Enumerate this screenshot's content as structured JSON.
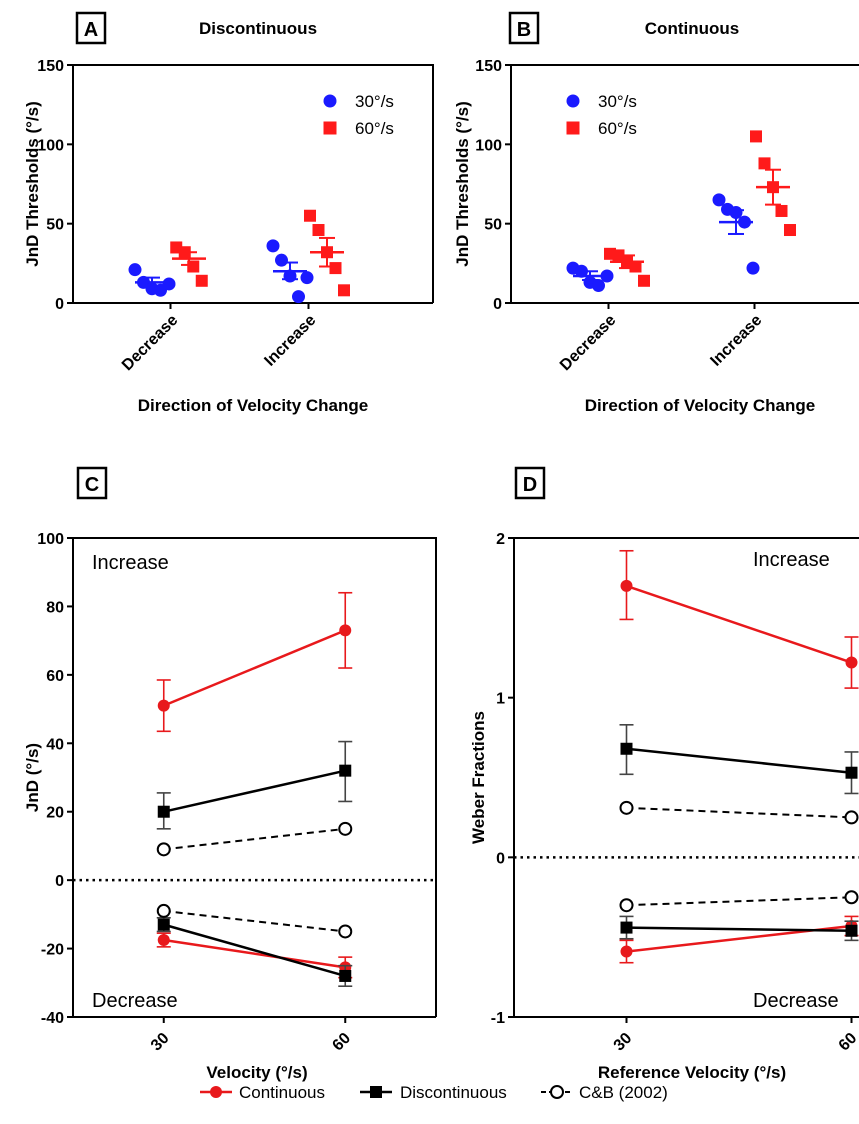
{
  "colors": {
    "blue": "#1a1aff",
    "red": "#ff1a1a",
    "red_line": "#e8191c",
    "black": "#000000"
  },
  "legend": {
    "continuous": "Continuous",
    "discontinuous": "Discontinuous",
    "cb": "C&B (2002)"
  },
  "chart_data": [
    {
      "panel": "A",
      "type": "scatter",
      "title": "Discontinuous",
      "xlabel": "Direction of Velocity Change",
      "ylabel": "JnD Thresholds (°/s)",
      "ylim": [
        0,
        150
      ],
      "yticks": [
        0,
        50,
        100,
        150
      ],
      "categories": [
        "Decrease",
        "Increase"
      ],
      "legend_position": "top-right",
      "series": [
        {
          "name": "30°/s",
          "marker": "circle",
          "color": "#1a1aff",
          "groups": [
            {
              "category": "Decrease",
              "points": [
                21,
                13,
                9,
                8,
                12
              ],
              "mean": 13,
              "sem_low": 10.5,
              "sem_high": 16
            },
            {
              "category": "Increase",
              "points": [
                36,
                27,
                17,
                4,
                16
              ],
              "mean": 20,
              "sem_low": 15,
              "sem_high": 25.5
            }
          ]
        },
        {
          "name": "60°/s",
          "marker": "square",
          "color": "#ff1a1a",
          "groups": [
            {
              "category": "Decrease",
              "points": [
                35,
                32,
                23,
                14
              ],
              "mean": 28,
              "sem_low": 24,
              "sem_high": 32
            },
            {
              "category": "Increase",
              "points": [
                55,
                46,
                32,
                22,
                8
              ],
              "mean": 32,
              "sem_low": 23,
              "sem_high": 41
            }
          ]
        }
      ]
    },
    {
      "panel": "B",
      "type": "scatter",
      "title": "Continuous",
      "xlabel": "Direction of Velocity Change",
      "ylabel": "JnD Thresholds (°/s)",
      "ylim": [
        0,
        150
      ],
      "yticks": [
        0,
        50,
        100,
        150
      ],
      "categories": [
        "Decrease",
        "Increase"
      ],
      "legend_position": "top-left",
      "series": [
        {
          "name": "30°/s",
          "marker": "circle",
          "color": "#1a1aff",
          "groups": [
            {
              "category": "Decrease",
              "points": [
                22,
                20,
                13,
                11,
                17
              ],
              "mean": 17,
              "sem_low": 14.5,
              "sem_high": 20
            },
            {
              "category": "Increase",
              "points": [
                65,
                59,
                57,
                51,
                22
              ],
              "mean": 51,
              "sem_low": 43.5,
              "sem_high": 58.5
            }
          ]
        },
        {
          "name": "60°/s",
          "marker": "square",
          "color": "#ff1a1a",
          "groups": [
            {
              "category": "Decrease",
              "points": [
                31,
                30,
                26,
                23,
                14
              ],
              "mean": 26,
              "sem_low": 22,
              "sem_high": 30
            },
            {
              "category": "Increase",
              "points": [
                105,
                88,
                73,
                58,
                46
              ],
              "mean": 73,
              "sem_low": 62,
              "sem_high": 84
            }
          ]
        }
      ]
    },
    {
      "panel": "C",
      "type": "line",
      "xlabel": "Velocity (°/s)",
      "ylabel": "JnD (°/s)",
      "ylim": [
        -40,
        100
      ],
      "yticks": [
        -40,
        -20,
        0,
        20,
        40,
        60,
        80,
        100
      ],
      "x": [
        30,
        60
      ],
      "xlim": [
        15,
        75
      ],
      "zero_line": true,
      "annotations": {
        "top": "Increase",
        "bottom": "Decrease"
      },
      "series": [
        {
          "name": "Continuous",
          "marker": "circle-filled",
          "color": "#e8191c",
          "dash": false,
          "values": [
            51,
            73
          ],
          "err_low": [
            43.5,
            62
          ],
          "err_high": [
            58.5,
            84
          ]
        },
        {
          "name": "Discontinuous",
          "marker": "square",
          "color": "#000000",
          "dash": false,
          "values": [
            20,
            32
          ],
          "err_low": [
            15,
            23
          ],
          "err_high": [
            25.5,
            40.5
          ]
        },
        {
          "name": "C&B (2002)",
          "marker": "circle-open",
          "color": "#000000",
          "dash": true,
          "values": [
            9,
            15
          ],
          "err_low": null,
          "err_high": null
        },
        {
          "name": "Continuous",
          "marker": "circle-filled",
          "color": "#e8191c",
          "dash": false,
          "values": [
            -17.5,
            -25.5
          ],
          "err_low": [
            -19.5,
            -28.5
          ],
          "err_high": [
            -15.5,
            -22.5
          ]
        },
        {
          "name": "Discontinuous",
          "marker": "square",
          "color": "#000000",
          "dash": false,
          "values": [
            -13,
            -28
          ],
          "err_low": [
            -15,
            -31
          ],
          "err_high": [
            -11,
            -25
          ]
        },
        {
          "name": "C&B (2002)",
          "marker": "circle-open",
          "color": "#000000",
          "dash": true,
          "values": [
            -9,
            -15
          ],
          "err_low": null,
          "err_high": null
        }
      ]
    },
    {
      "panel": "D",
      "type": "line",
      "xlabel": "Reference Velocity (°/s)",
      "ylabel": "Weber Fractions",
      "ylim": [
        -1,
        2
      ],
      "yticks": [
        -1,
        0,
        1,
        2
      ],
      "x": [
        30,
        60
      ],
      "xlim": [
        15,
        75
      ],
      "zero_line": true,
      "annotations": {
        "top": "Increase",
        "bottom": "Decrease"
      },
      "series": [
        {
          "name": "Continuous",
          "marker": "circle-filled",
          "color": "#e8191c",
          "dash": false,
          "values": [
            1.7,
            1.22
          ],
          "err_low": [
            1.49,
            1.06
          ],
          "err_high": [
            1.92,
            1.38
          ]
        },
        {
          "name": "Discontinuous",
          "marker": "square",
          "color": "#000000",
          "dash": false,
          "values": [
            0.68,
            0.53
          ],
          "err_low": [
            0.52,
            0.4
          ],
          "err_high": [
            0.83,
            0.66
          ]
        },
        {
          "name": "C&B (2002)",
          "marker": "circle-open",
          "color": "#000000",
          "dash": true,
          "values": [
            0.31,
            0.25
          ],
          "err_low": null,
          "err_high": null
        },
        {
          "name": "Continuous",
          "marker": "circle-filled",
          "color": "#e8191c",
          "dash": false,
          "values": [
            -0.59,
            -0.43
          ],
          "err_low": [
            -0.66,
            -0.49
          ],
          "err_high": [
            -0.52,
            -0.37
          ]
        },
        {
          "name": "Discontinuous",
          "marker": "square",
          "color": "#000000",
          "dash": false,
          "values": [
            -0.44,
            -0.46
          ],
          "err_low": [
            -0.51,
            -0.52
          ],
          "err_high": [
            -0.37,
            -0.4
          ]
        },
        {
          "name": "C&B (2002)",
          "marker": "circle-open",
          "color": "#000000",
          "dash": true,
          "values": [
            -0.3,
            -0.25
          ],
          "err_low": null,
          "err_high": null
        }
      ]
    }
  ]
}
